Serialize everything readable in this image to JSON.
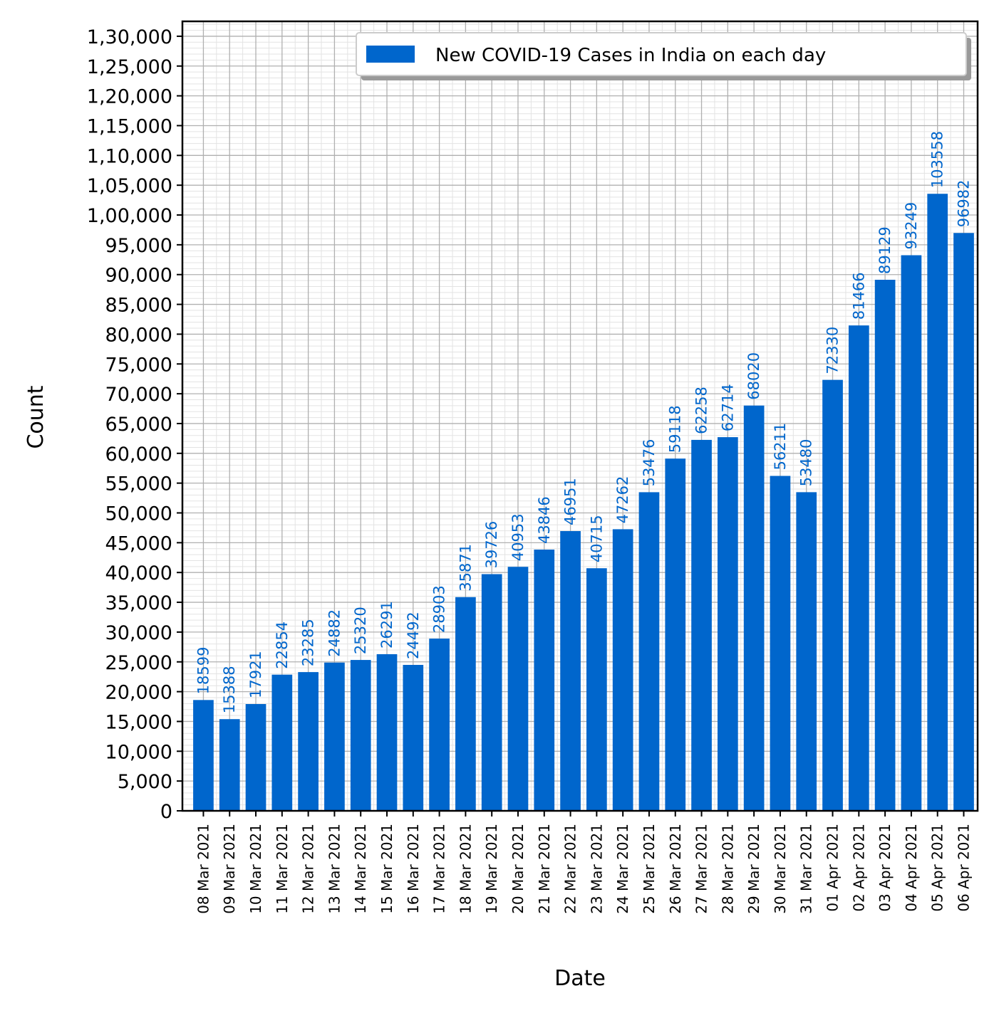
{
  "chart_data": {
    "type": "bar",
    "title": "",
    "xlabel": "Date",
    "ylabel": "Count",
    "ylim": [
      0,
      132500
    ],
    "y_major_step": 5000,
    "y_minor_step": 1000,
    "grid": true,
    "legend": {
      "label": "New COVID-19 Cases in India on each day",
      "position": "top-right"
    },
    "colors": {
      "bar": "#0066cc",
      "label": "#0066cc",
      "grid_major": "#b0b0b0",
      "grid_minor": "#e3e3e3",
      "axis": "#000000"
    },
    "yticks": [
      "0",
      "5,000",
      "10,000",
      "15,000",
      "20,000",
      "25,000",
      "30,000",
      "35,000",
      "40,000",
      "45,000",
      "50,000",
      "55,000",
      "60,000",
      "65,000",
      "70,000",
      "75,000",
      "80,000",
      "85,000",
      "90,000",
      "95,000",
      "1,00,000",
      "1,05,000",
      "1,10,000",
      "1,15,000",
      "1,20,000",
      "1,25,000",
      "1,30,000"
    ],
    "categories": [
      "08 Mar 2021",
      "09 Mar 2021",
      "10 Mar 2021",
      "11 Mar 2021",
      "12 Mar 2021",
      "13 Mar 2021",
      "14 Mar 2021",
      "15 Mar 2021",
      "16 Mar 2021",
      "17 Mar 2021",
      "18 Mar 2021",
      "19 Mar 2021",
      "20 Mar 2021",
      "21 Mar 2021",
      "22 Mar 2021",
      "23 Mar 2021",
      "24 Mar 2021",
      "25 Mar 2021",
      "26 Mar 2021",
      "27 Mar 2021",
      "28 Mar 2021",
      "29 Mar 2021",
      "30 Mar 2021",
      "31 Mar 2021",
      "01 Apr 2021",
      "02 Apr 2021",
      "03 Apr 2021",
      "04 Apr 2021",
      "05 Apr 2021",
      "06 Apr 2021"
    ],
    "values": [
      18599,
      15388,
      17921,
      22854,
      23285,
      24882,
      25320,
      26291,
      24492,
      28903,
      35871,
      39726,
      40953,
      43846,
      46951,
      40715,
      47262,
      53476,
      59118,
      62258,
      62714,
      68020,
      56211,
      53480,
      72330,
      81466,
      89129,
      93249,
      103558,
      96982
    ]
  }
}
